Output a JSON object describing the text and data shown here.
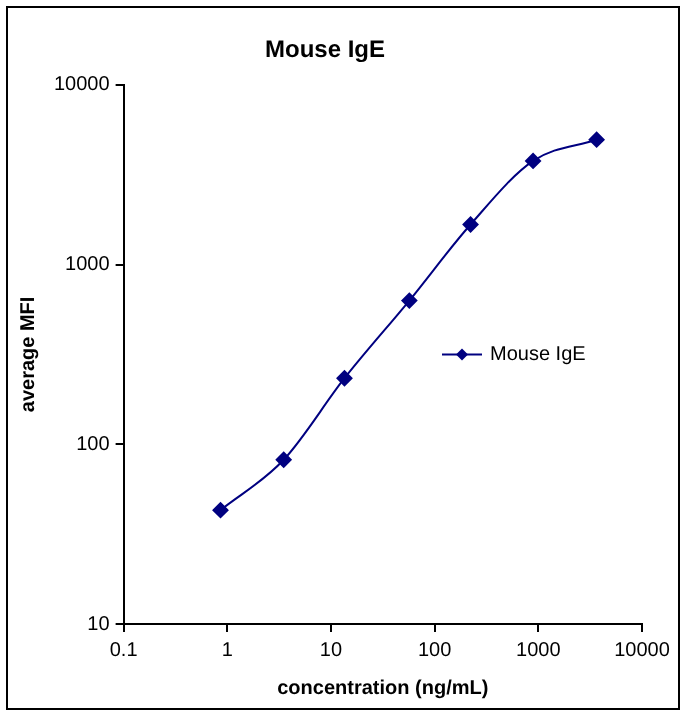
{
  "chart_data": {
    "type": "line",
    "title": "Mouse IgE",
    "xlabel": "concentration (ng/mL)",
    "ylabel": "average MFI",
    "log": "xy",
    "x": [
      0.86,
      3.5,
      13.5,
      57,
      222,
      890,
      3650
    ],
    "series": [
      {
        "name": "Mouse IgE",
        "color": "#000080",
        "values": [
          43,
          82,
          233,
          630,
          1670,
          3770,
          4950
        ]
      }
    ],
    "xlim": [
      0.1,
      10000
    ],
    "xticks": [
      0.1,
      1,
      10,
      100,
      1000,
      10000
    ],
    "ylim": [
      10,
      10000
    ],
    "yticks": [
      10,
      100,
      1000,
      10000
    ],
    "grid": false,
    "legend": "right",
    "marker": "diamond",
    "line_style": "solid"
  }
}
